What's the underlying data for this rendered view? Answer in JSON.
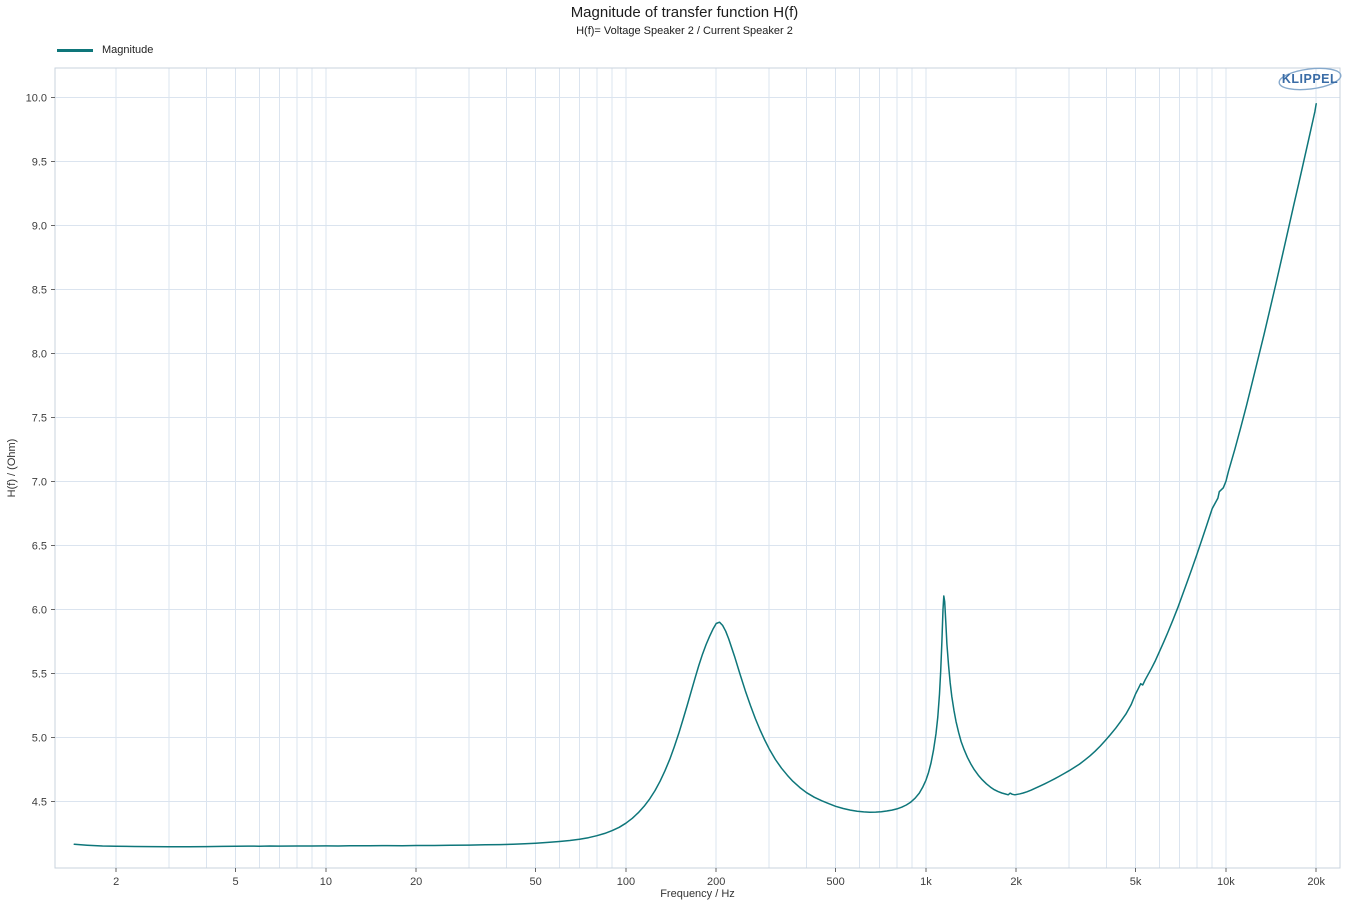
{
  "title": "Magnitude of transfer function H(f)",
  "subtitle": "H(f)= Voltage Speaker 2 / Current Speaker 2",
  "legend": {
    "label": "Magnitude"
  },
  "logo_text": "KLIPPEL",
  "colors": {
    "line": "#0e767a",
    "grid": "#dbe4ef",
    "frame": "#c9d3de",
    "tick": "#666666",
    "tick_text": "#3d3d3d",
    "logo_text": "#3a6ca6",
    "logo_ellipse": "#86a9cc"
  },
  "chart_data": {
    "type": "line",
    "title": "Magnitude of transfer function H(f)",
    "subtitle": "H(f)= Voltage Speaker 2 / Current Speaker 2",
    "xlabel": "Frequency / Hz",
    "ylabel": "H(f) / (Ohm)",
    "x_scale": "log",
    "grid": true,
    "legend_position": "top-left",
    "x_domain": [
      1.25,
      24000
    ],
    "y_domain": [
      3.98,
      10.23
    ],
    "x_ticks": [
      {
        "v": 2,
        "label": "2"
      },
      {
        "v": 5,
        "label": "5"
      },
      {
        "v": 10,
        "label": "10"
      },
      {
        "v": 20,
        "label": "20"
      },
      {
        "v": 50,
        "label": "50"
      },
      {
        "v": 100,
        "label": "100"
      },
      {
        "v": 200,
        "label": "200"
      },
      {
        "v": 500,
        "label": "500"
      },
      {
        "v": 1000,
        "label": "1k"
      },
      {
        "v": 2000,
        "label": "2k"
      },
      {
        "v": 5000,
        "label": "5k"
      },
      {
        "v": 10000,
        "label": "10k"
      },
      {
        "v": 20000,
        "label": "20k"
      }
    ],
    "y_ticks": [
      {
        "v": 4.5,
        "label": "4.5"
      },
      {
        "v": 5.0,
        "label": "5.0"
      },
      {
        "v": 5.5,
        "label": "5.5"
      },
      {
        "v": 6.0,
        "label": "6.0"
      },
      {
        "v": 6.5,
        "label": "6.5"
      },
      {
        "v": 7.0,
        "label": "7.0"
      },
      {
        "v": 7.5,
        "label": "7.5"
      },
      {
        "v": 8.0,
        "label": "8.0"
      },
      {
        "v": 8.5,
        "label": "8.5"
      },
      {
        "v": 9.0,
        "label": "9.0"
      },
      {
        "v": 9.5,
        "label": "9.5"
      },
      {
        "v": 10.0,
        "label": "10.0"
      }
    ],
    "series": [
      {
        "name": "Magnitude",
        "color": "#0e767a",
        "points": [
          [
            1.45,
            4.165
          ],
          [
            1.6,
            4.158
          ],
          [
            1.8,
            4.152
          ],
          [
            2.0,
            4.15
          ],
          [
            2.3,
            4.148
          ],
          [
            2.6,
            4.147
          ],
          [
            3.0,
            4.146
          ],
          [
            3.5,
            4.146
          ],
          [
            4.0,
            4.147
          ],
          [
            4.5,
            4.149
          ],
          [
            5.0,
            4.15
          ],
          [
            5.5,
            4.151
          ],
          [
            6.0,
            4.15
          ],
          [
            6.5,
            4.152
          ],
          [
            7.0,
            4.151
          ],
          [
            8.0,
            4.152
          ],
          [
            9.0,
            4.152
          ],
          [
            10,
            4.153
          ],
          [
            11,
            4.152
          ],
          [
            12,
            4.154
          ],
          [
            14,
            4.154
          ],
          [
            16,
            4.155
          ],
          [
            18,
            4.154
          ],
          [
            20,
            4.156
          ],
          [
            23,
            4.156
          ],
          [
            26,
            4.158
          ],
          [
            30,
            4.159
          ],
          [
            34,
            4.161
          ],
          [
            38,
            4.163
          ],
          [
            42,
            4.166
          ],
          [
            46,
            4.17
          ],
          [
            50,
            4.174
          ],
          [
            55,
            4.18
          ],
          [
            60,
            4.187
          ],
          [
            65,
            4.195
          ],
          [
            70,
            4.205
          ],
          [
            75,
            4.217
          ],
          [
            80,
            4.232
          ],
          [
            85,
            4.25
          ],
          [
            90,
            4.272
          ],
          [
            95,
            4.298
          ],
          [
            100,
            4.33
          ],
          [
            105,
            4.368
          ],
          [
            110,
            4.412
          ],
          [
            115,
            4.462
          ],
          [
            120,
            4.52
          ],
          [
            125,
            4.585
          ],
          [
            130,
            4.658
          ],
          [
            135,
            4.74
          ],
          [
            140,
            4.83
          ],
          [
            145,
            4.928
          ],
          [
            150,
            5.032
          ],
          [
            155,
            5.14
          ],
          [
            160,
            5.25
          ],
          [
            165,
            5.36
          ],
          [
            170,
            5.465
          ],
          [
            175,
            5.562
          ],
          [
            180,
            5.65
          ],
          [
            185,
            5.726
          ],
          [
            190,
            5.79
          ],
          [
            195,
            5.845
          ],
          [
            200,
            5.89
          ],
          [
            205,
            5.9
          ],
          [
            210,
            5.875
          ],
          [
            215,
            5.83
          ],
          [
            220,
            5.77
          ],
          [
            230,
            5.635
          ],
          [
            240,
            5.495
          ],
          [
            250,
            5.365
          ],
          [
            260,
            5.25
          ],
          [
            270,
            5.148
          ],
          [
            280,
            5.058
          ],
          [
            290,
            4.98
          ],
          [
            300,
            4.912
          ],
          [
            315,
            4.828
          ],
          [
            330,
            4.76
          ],
          [
            345,
            4.705
          ],
          [
            360,
            4.658
          ],
          [
            380,
            4.608
          ],
          [
            400,
            4.568
          ],
          [
            425,
            4.532
          ],
          [
            450,
            4.505
          ],
          [
            475,
            4.482
          ],
          [
            500,
            4.462
          ],
          [
            530,
            4.445
          ],
          [
            560,
            4.432
          ],
          [
            590,
            4.423
          ],
          [
            620,
            4.418
          ],
          [
            650,
            4.416
          ],
          [
            680,
            4.417
          ],
          [
            710,
            4.42
          ],
          [
            740,
            4.425
          ],
          [
            770,
            4.432
          ],
          [
            800,
            4.442
          ],
          [
            830,
            4.455
          ],
          [
            860,
            4.472
          ],
          [
            890,
            4.495
          ],
          [
            920,
            4.525
          ],
          [
            950,
            4.565
          ],
          [
            975,
            4.61
          ],
          [
            1000,
            4.665
          ],
          [
            1020,
            4.725
          ],
          [
            1040,
            4.8
          ],
          [
            1060,
            4.9
          ],
          [
            1080,
            5.03
          ],
          [
            1095,
            5.16
          ],
          [
            1110,
            5.34
          ],
          [
            1120,
            5.52
          ],
          [
            1130,
            5.75
          ],
          [
            1140,
            6.0
          ],
          [
            1147,
            6.105
          ],
          [
            1155,
            6.06
          ],
          [
            1165,
            5.9
          ],
          [
            1175,
            5.73
          ],
          [
            1190,
            5.56
          ],
          [
            1205,
            5.425
          ],
          [
            1220,
            5.32
          ],
          [
            1240,
            5.21
          ],
          [
            1260,
            5.125
          ],
          [
            1285,
            5.04
          ],
          [
            1310,
            4.968
          ],
          [
            1340,
            4.905
          ],
          [
            1375,
            4.845
          ],
          [
            1410,
            4.795
          ],
          [
            1450,
            4.748
          ],
          [
            1495,
            4.705
          ],
          [
            1540,
            4.67
          ],
          [
            1590,
            4.638
          ],
          [
            1640,
            4.612
          ],
          [
            1690,
            4.592
          ],
          [
            1740,
            4.577
          ],
          [
            1790,
            4.566
          ],
          [
            1840,
            4.558
          ],
          [
            1880,
            4.552
          ],
          [
            1910,
            4.565
          ],
          [
            1940,
            4.556
          ],
          [
            1980,
            4.552
          ],
          [
            2020,
            4.556
          ],
          [
            2060,
            4.56
          ],
          [
            2110,
            4.566
          ],
          [
            2170,
            4.575
          ],
          [
            2240,
            4.588
          ],
          [
            2320,
            4.604
          ],
          [
            2400,
            4.62
          ],
          [
            2490,
            4.638
          ],
          [
            2580,
            4.656
          ],
          [
            2680,
            4.676
          ],
          [
            2780,
            4.696
          ],
          [
            2890,
            4.718
          ],
          [
            3000,
            4.74
          ],
          [
            3120,
            4.765
          ],
          [
            3250,
            4.792
          ],
          [
            3380,
            4.822
          ],
          [
            3520,
            4.856
          ],
          [
            3660,
            4.892
          ],
          [
            3810,
            4.932
          ],
          [
            3960,
            4.975
          ],
          [
            4120,
            5.022
          ],
          [
            4290,
            5.072
          ],
          [
            4460,
            5.125
          ],
          [
            4640,
            5.182
          ],
          [
            4830,
            5.255
          ],
          [
            5000,
            5.34
          ],
          [
            5100,
            5.38
          ],
          [
            5200,
            5.42
          ],
          [
            5280,
            5.41
          ],
          [
            5380,
            5.45
          ],
          [
            5500,
            5.49
          ],
          [
            5650,
            5.54
          ],
          [
            5820,
            5.6
          ],
          [
            6000,
            5.67
          ],
          [
            6200,
            5.745
          ],
          [
            6400,
            5.82
          ],
          [
            6650,
            5.915
          ],
          [
            6900,
            6.01
          ],
          [
            7150,
            6.108
          ],
          [
            7400,
            6.205
          ],
          [
            7700,
            6.318
          ],
          [
            8000,
            6.43
          ],
          [
            8300,
            6.54
          ],
          [
            8600,
            6.648
          ],
          [
            9000,
            6.788
          ],
          [
            9400,
            6.87
          ],
          [
            9500,
            6.92
          ],
          [
            9800,
            6.95
          ],
          [
            10000,
            7.0
          ],
          [
            10200,
            7.08
          ],
          [
            10700,
            7.25
          ],
          [
            11200,
            7.42
          ],
          [
            11700,
            7.59
          ],
          [
            12200,
            7.76
          ],
          [
            12800,
            7.96
          ],
          [
            13400,
            8.15
          ],
          [
            14000,
            8.34
          ],
          [
            14700,
            8.55
          ],
          [
            15400,
            8.76
          ],
          [
            16100,
            8.96
          ],
          [
            16800,
            9.15
          ],
          [
            17500,
            9.33
          ],
          [
            18200,
            9.51
          ],
          [
            18900,
            9.68
          ],
          [
            19500,
            9.82
          ],
          [
            19800,
            9.89
          ],
          [
            20000,
            9.95
          ]
        ]
      }
    ]
  }
}
